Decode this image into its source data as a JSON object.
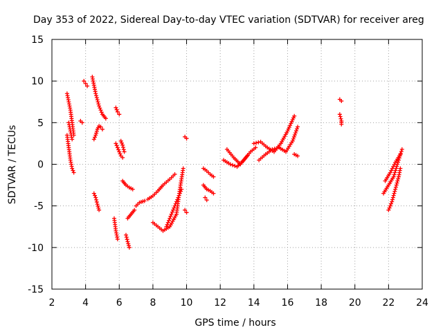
{
  "chart_data": {
    "type": "scatter",
    "title": "Day 353 of 2022, Sidereal Day-to-day VTEC variation (SDTVAR) for receiver areg",
    "xlabel": "GPS time / hours",
    "ylabel": "SDTVAR / TECUs",
    "xlim": [
      2,
      24
    ],
    "ylim": [
      -15,
      15
    ],
    "xticks": [
      2,
      4,
      6,
      8,
      10,
      12,
      14,
      16,
      18,
      20,
      22,
      24
    ],
    "yticks": [
      -15,
      -10,
      -5,
      0,
      5,
      10,
      15
    ],
    "grid": true,
    "marker": "+",
    "color": "#ff0000",
    "series": [
      {
        "name": "SDTVAR",
        "segments": [
          {
            "x": [
              2.9,
              3.0,
              3.1,
              3.2,
              3.3
            ],
            "y": [
              8.5,
              7.5,
              6.5,
              5.0,
              3.5
            ]
          },
          {
            "x": [
              2.9,
              3.0,
              3.1,
              3.2,
              3.3
            ],
            "y": [
              3.5,
              2.0,
              0.5,
              -0.5,
              -1.0
            ]
          },
          {
            "x": [
              3.0,
              3.1,
              3.2
            ],
            "y": [
              5.0,
              4.0,
              3.0
            ]
          },
          {
            "x": [
              3.7,
              3.8
            ],
            "y": [
              5.2,
              5.0
            ]
          },
          {
            "x": [
              3.9,
              4.0,
              4.1
            ],
            "y": [
              10.0,
              9.7,
              9.4
            ]
          },
          {
            "x": [
              4.4,
              4.6,
              4.8,
              5.0,
              5.2
            ],
            "y": [
              10.5,
              8.5,
              7.0,
              6.0,
              5.5
            ]
          },
          {
            "x": [
              4.5,
              4.6,
              4.7,
              4.8,
              4.9,
              5.0
            ],
            "y": [
              3.0,
              3.5,
              4.2,
              4.6,
              4.5,
              4.2
            ]
          },
          {
            "x": [
              4.5,
              4.6,
              4.7,
              4.8
            ],
            "y": [
              -3.5,
              -4.0,
              -4.8,
              -5.5
            ]
          },
          {
            "x": [
              5.7,
              5.8,
              5.9
            ],
            "y": [
              -6.5,
              -8.0,
              -9.0
            ]
          },
          {
            "x": [
              5.8,
              5.9,
              6.0
            ],
            "y": [
              6.8,
              6.3,
              6.0
            ]
          },
          {
            "x": [
              5.8,
              6.0,
              6.1,
              6.2
            ],
            "y": [
              2.5,
              1.5,
              1.0,
              0.8
            ]
          },
          {
            "x": [
              6.1,
              6.2,
              6.3
            ],
            "y": [
              2.8,
              2.3,
              1.5
            ]
          },
          {
            "x": [
              6.2,
              6.4,
              6.6,
              6.8
            ],
            "y": [
              -2.0,
              -2.5,
              -2.8,
              -3.0
            ]
          },
          {
            "x": [
              6.4,
              6.5,
              6.6
            ],
            "y": [
              -8.5,
              -9.3,
              -10.0
            ]
          },
          {
            "x": [
              6.5,
              6.7,
              6.9
            ],
            "y": [
              -6.5,
              -6.0,
              -5.5
            ]
          },
          {
            "x": [
              7.0,
              7.2,
              7.5
            ],
            "y": [
              -5.0,
              -4.6,
              -4.4
            ]
          },
          {
            "x": [
              7.7,
              8.0,
              8.3,
              8.6,
              9.0,
              9.3
            ],
            "y": [
              -4.2,
              -3.8,
              -3.2,
              -2.5,
              -1.8,
              -1.2
            ]
          },
          {
            "x": [
              8.0,
              8.3,
              8.6,
              9.0,
              9.4,
              9.6,
              9.8
            ],
            "y": [
              -7.0,
              -7.5,
              -8.0,
              -7.5,
              -6.0,
              -3.0,
              -0.5
            ]
          },
          {
            "x": [
              8.8,
              9.1,
              9.4,
              9.7
            ],
            "y": [
              -7.5,
              -6.0,
              -4.5,
              -3.0
            ]
          },
          {
            "x": [
              9.9,
              10.0
            ],
            "y": [
              3.3,
              3.1
            ]
          },
          {
            "x": [
              9.9,
              10.0
            ],
            "y": [
              -5.5,
              -5.8
            ]
          },
          {
            "x": [
              11.0,
              11.2,
              11.4,
              11.6
            ],
            "y": [
              -0.5,
              -0.8,
              -1.2,
              -1.5
            ]
          },
          {
            "x": [
              11.0,
              11.2,
              11.4,
              11.6
            ],
            "y": [
              -2.5,
              -3.0,
              -3.2,
              -3.5
            ]
          },
          {
            "x": [
              11.1,
              11.2
            ],
            "y": [
              -4.0,
              -4.3
            ]
          },
          {
            "x": [
              12.2,
              12.6,
              13.0,
              13.4,
              13.8,
              14.1
            ],
            "y": [
              0.5,
              0.0,
              -0.3,
              0.5,
              1.5,
              2.0
            ]
          },
          {
            "x": [
              12.4,
              12.8,
              13.2,
              13.6
            ],
            "y": [
              1.8,
              0.8,
              0.0,
              1.0
            ]
          },
          {
            "x": [
              14.0,
              14.4,
              14.8,
              15.2,
              15.6,
              16.0,
              16.4
            ],
            "y": [
              2.5,
              2.7,
              2.0,
              1.5,
              2.5,
              4.0,
              5.8
            ]
          },
          {
            "x": [
              14.3,
              14.7,
              15.1,
              15.5,
              15.9,
              16.3,
              16.6
            ],
            "y": [
              0.5,
              1.2,
              1.8,
              2.0,
              1.5,
              2.8,
              4.5
            ]
          },
          {
            "x": [
              16.4,
              16.6
            ],
            "y": [
              1.2,
              1.0
            ]
          },
          {
            "x": [
              19.1,
              19.2
            ],
            "y": [
              7.8,
              7.6
            ]
          },
          {
            "x": [
              19.1,
              19.2,
              19.2
            ],
            "y": [
              6.0,
              5.2,
              4.8
            ]
          },
          {
            "x": [
              21.7,
              22.0,
              22.3,
              22.6,
              22.8
            ],
            "y": [
              -3.5,
              -2.5,
              -1.5,
              0.5,
              1.8
            ]
          },
          {
            "x": [
              21.8,
              22.1,
              22.4,
              22.7
            ],
            "y": [
              -2.0,
              -1.0,
              0.2,
              1.2
            ]
          },
          {
            "x": [
              22.0,
              22.2,
              22.4,
              22.6,
              22.7
            ],
            "y": [
              -5.5,
              -4.5,
              -3.0,
              -1.5,
              -0.5
            ]
          }
        ]
      }
    ]
  }
}
